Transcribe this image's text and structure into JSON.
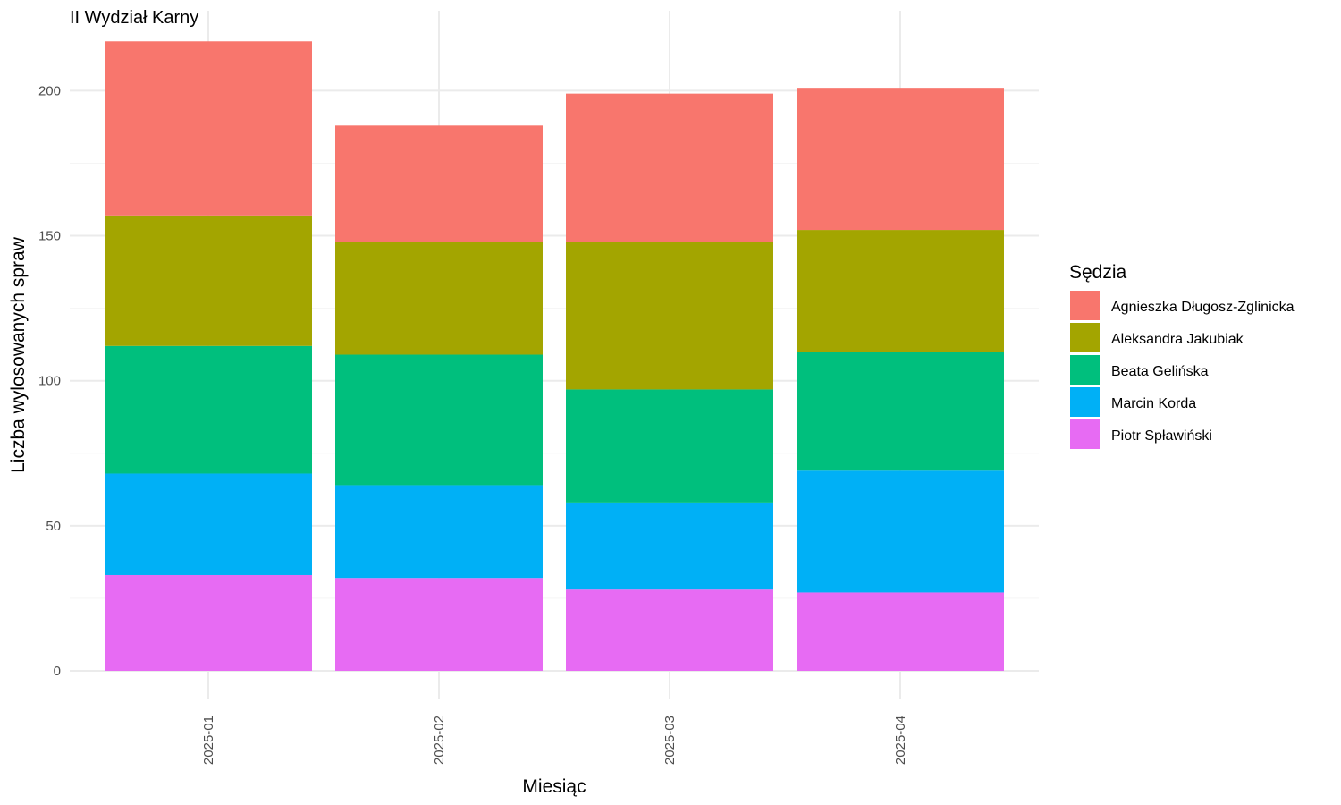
{
  "chart_data": {
    "type": "bar",
    "stacked": true,
    "title": "II Wydział Karny",
    "xlabel": "Miesiąc",
    "ylabel": "Liczba wylosowanych spraw",
    "categories": [
      "2025-01",
      "2025-02",
      "2025-03",
      "2025-04"
    ],
    "ylim": [
      0,
      222
    ],
    "yticks": [
      0,
      50,
      100,
      150,
      200
    ],
    "grid": true,
    "legend": {
      "title": "Sędzia",
      "position": "right"
    },
    "series": [
      {
        "name": "Piotr Spławiński",
        "color": "#E76BF3",
        "values": [
          33,
          32,
          28,
          27
        ]
      },
      {
        "name": "Marcin Korda",
        "color": "#00B0F6",
        "values": [
          35,
          32,
          30,
          42
        ]
      },
      {
        "name": "Beata Gelińska",
        "color": "#00BF7D",
        "values": [
          44,
          45,
          39,
          41
        ]
      },
      {
        "name": "Aleksandra Jakubiak",
        "color": "#A3A500",
        "values": [
          45,
          39,
          51,
          42
        ]
      },
      {
        "name": "Agnieszka Długosz-Zglinicka",
        "color": "#F8766D",
        "values": [
          60,
          40,
          51,
          49
        ]
      }
    ],
    "legend_order": [
      "Agnieszka Długosz-Zglinicka",
      "Aleksandra Jakubiak",
      "Beata Gelińska",
      "Marcin Korda",
      "Piotr Spławiński"
    ]
  }
}
